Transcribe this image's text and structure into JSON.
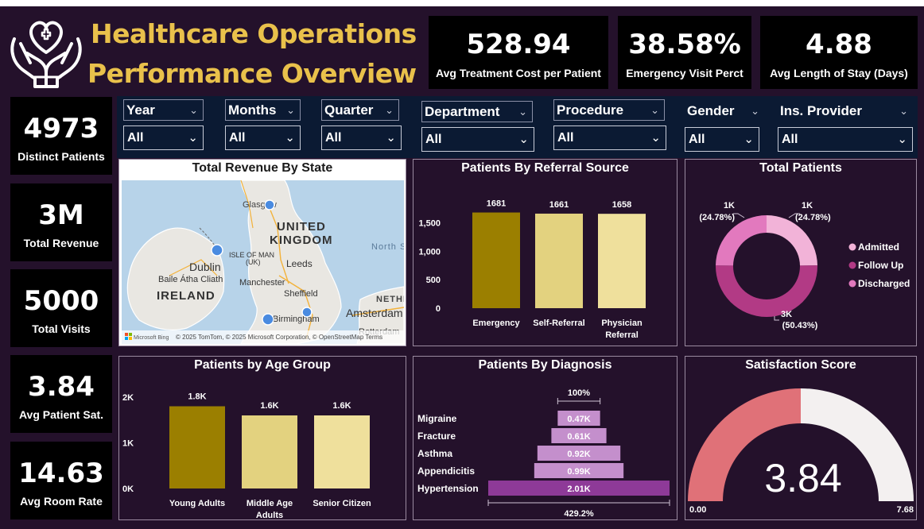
{
  "header": {
    "title_line1": "Healthcare Operations",
    "title_line2": "Performance Overview",
    "logo_icon": "heart-hands-icon"
  },
  "top_kpis": [
    {
      "value": "528.94",
      "label": "Avg Treatment Cost per Patient"
    },
    {
      "value": "38.58%",
      "label": "Emergency Visit Perct"
    },
    {
      "value": "4.88",
      "label": "Avg Length of Stay (Days)"
    }
  ],
  "side_kpis": [
    {
      "value": "4973",
      "label": "Distinct Patients"
    },
    {
      "value": "3M",
      "label": "Total Revenue"
    },
    {
      "value": "5000",
      "label": "Total Visits"
    },
    {
      "value": "3.84",
      "label": "Avg Patient Sat."
    },
    {
      "value": "14.63",
      "label": "Avg Room Rate"
    }
  ],
  "slicers": [
    {
      "label": "Year",
      "selected": "All"
    },
    {
      "label": "Months",
      "selected": "All"
    },
    {
      "label": "Quarter",
      "selected": "All"
    },
    {
      "label": "Department",
      "selected": "All"
    },
    {
      "label": "Procedure",
      "selected": "All"
    },
    {
      "label": "Gender",
      "selected": "All"
    },
    {
      "label": "Ins. Provider",
      "selected": "All"
    }
  ],
  "map": {
    "title": "Total Revenue By State",
    "labels": {
      "glasgow": "Glasgow",
      "uk1": "UNITED",
      "uk2": "KINGDOM",
      "isle1": "ISLE OF MAN",
      "isle2": "(UK)",
      "dublin": "Dublin",
      "baile": "Baile Átha Cliath",
      "ireland": "IRELAND",
      "leeds": "Leeds",
      "manchester": "Manchester",
      "sheffield": "Sheffield",
      "birmingham": "Birmingham",
      "amsterdam": "Amsterdam",
      "rotterdam": "Rotterdam",
      "nethe": "NETHE",
      "northsea": "North S",
      "attribution": "© 2025 TomTom, © 2025 Microsoft Corporation, © OpenStreetMap Terms",
      "ms_bing": "Microsoft Bing"
    }
  },
  "referral": {
    "title": "Patients By Referral Source",
    "chart_data": {
      "type": "bar",
      "categories": [
        "Emergency",
        "Self-Referral",
        "Physician Referral"
      ],
      "values": [
        1681,
        1661,
        1658
      ],
      "data_labels": [
        "1681",
        "1661",
        "1658"
      ],
      "yticks": [
        "0",
        "500",
        "1,000",
        "1,500"
      ],
      "ylim": [
        0,
        1800
      ],
      "colors": [
        "#9b7f00",
        "#e3d27f",
        "#efe09c"
      ]
    }
  },
  "total_patients": {
    "title": "Total Patients",
    "chart_data": {
      "type": "pie",
      "donut": true,
      "slices": [
        {
          "name": "Admitted",
          "value": 24.78,
          "label1": "1K",
          "label2": "(24.78%)",
          "color": "#f2b3d8"
        },
        {
          "name": "Follow Up",
          "value": 50.43,
          "label1": "3K",
          "label2": "(50.43%)",
          "color": "#b23a85"
        },
        {
          "name": "Discharged",
          "value": 24.78,
          "label1": "1K",
          "label2": "(24.78%)",
          "color": "#e279be"
        }
      ]
    }
  },
  "age_group": {
    "title": "Patients by Age Group",
    "chart_data": {
      "type": "bar",
      "categories": [
        "Young Adults",
        "Middle Age Adults",
        "Senior Citizen"
      ],
      "category_lines": [
        [
          "Young Adults"
        ],
        [
          "Middle Age",
          "Adults"
        ],
        [
          "Senior Citizen"
        ]
      ],
      "values": [
        1800,
        1600,
        1600
      ],
      "data_labels": [
        "1.8K",
        "1.6K",
        "1.6K"
      ],
      "yticks": [
        "0K",
        "1K",
        "2K"
      ],
      "ylim": [
        0,
        2000
      ],
      "colors": [
        "#9b7f00",
        "#e3d27f",
        "#efe09c"
      ]
    }
  },
  "diagnosis": {
    "title": "Patients By Diagnosis",
    "chart_data": {
      "type": "bar",
      "subtype": "funnel",
      "categories": [
        "Migraine",
        "Fracture",
        "Asthma",
        "Appendicitis",
        "Hypertension"
      ],
      "values": [
        470,
        610,
        920,
        990,
        2010
      ],
      "data_labels": [
        "0.47K",
        "0.61K",
        "0.92K",
        "0.99K",
        "2.01K"
      ],
      "top_pct": "100%",
      "bottom_pct": "429.2%",
      "colors": [
        "#c48fcc",
        "#c48fcc",
        "#c48fcc",
        "#c48fcc",
        "#8e3a98"
      ]
    }
  },
  "satisfaction": {
    "title": "Satisfaction Score",
    "chart_data": {
      "type": "gauge",
      "value": 3.84,
      "min": 0,
      "max": 7.68,
      "value_label": "3.84",
      "min_label": "0.00",
      "max_label": "7.68",
      "fill_color": "#e07178",
      "track_color": "#f3f0f0"
    }
  }
}
